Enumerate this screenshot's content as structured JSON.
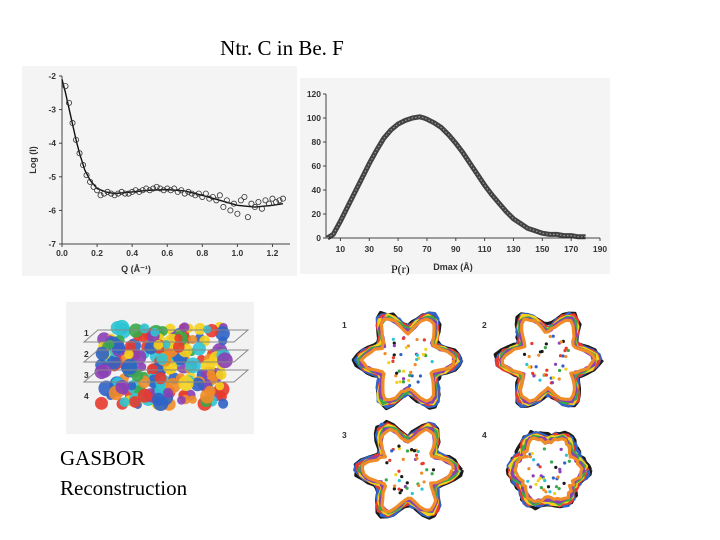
{
  "slide": {
    "title": "Ntr. C in Be. F",
    "caption_line1": "GASBOR",
    "caption_line2": "Reconstruction",
    "pr_label": "P(r)"
  },
  "chart_data": [
    {
      "type": "scatter",
      "xlabel": "Q (Å⁻¹)",
      "ylabel": "Log (I)",
      "xlim": [
        0.0,
        1.3
      ],
      "ylim": [
        -7,
        -2
      ],
      "xticks": [
        "0.0",
        "0.2",
        "0.4",
        "0.6",
        "0.8",
        "1.0",
        "1.2"
      ],
      "yticks": [
        "-2",
        "-3",
        "-4",
        "-5",
        "-6",
        "-7"
      ],
      "series": [
        {
          "kind": "points",
          "x": [
            0.02,
            0.04,
            0.06,
            0.08,
            0.1,
            0.12,
            0.14,
            0.16,
            0.18,
            0.2,
            0.22,
            0.24,
            0.26,
            0.28,
            0.3,
            0.32,
            0.34,
            0.36,
            0.38,
            0.4,
            0.42,
            0.44,
            0.46,
            0.48,
            0.5,
            0.52,
            0.54,
            0.56,
            0.58,
            0.6,
            0.62,
            0.64,
            0.66,
            0.68,
            0.7,
            0.72,
            0.74,
            0.76,
            0.78,
            0.8,
            0.82,
            0.84,
            0.86,
            0.88,
            0.9,
            0.92,
            0.94,
            0.96,
            0.98,
            1.0,
            1.02,
            1.04,
            1.06,
            1.08,
            1.1,
            1.12,
            1.14,
            1.16,
            1.18,
            1.2,
            1.22,
            1.24,
            1.26
          ],
          "y": [
            -2.3,
            -2.8,
            -3.4,
            -3.9,
            -4.3,
            -4.65,
            -4.95,
            -5.15,
            -5.3,
            -5.4,
            -5.55,
            -5.5,
            -5.45,
            -5.5,
            -5.55,
            -5.5,
            -5.45,
            -5.5,
            -5.5,
            -5.45,
            -5.4,
            -5.45,
            -5.4,
            -5.35,
            -5.4,
            -5.35,
            -5.3,
            -5.35,
            -5.4,
            -5.35,
            -5.4,
            -5.35,
            -5.45,
            -5.4,
            -5.5,
            -5.45,
            -5.5,
            -5.55,
            -5.5,
            -5.6,
            -5.5,
            -5.65,
            -5.6,
            -5.7,
            -5.55,
            -5.9,
            -5.7,
            -6.0,
            -5.8,
            -6.1,
            -5.7,
            -5.6,
            -6.2,
            -5.8,
            -5.9,
            -5.75,
            -5.95,
            -5.7,
            -5.8,
            -5.65,
            -5.75,
            -5.7,
            -5.65
          ]
        },
        {
          "kind": "fit",
          "x": [
            0.0,
            0.02,
            0.05,
            0.08,
            0.1,
            0.13,
            0.16,
            0.2,
            0.25,
            0.3,
            0.4,
            0.5,
            0.6,
            0.7,
            0.8,
            0.9,
            1.0,
            1.1,
            1.2,
            1.26
          ],
          "y": [
            -2.1,
            -2.5,
            -3.2,
            -3.9,
            -4.3,
            -4.8,
            -5.1,
            -5.35,
            -5.45,
            -5.5,
            -5.45,
            -5.4,
            -5.38,
            -5.42,
            -5.55,
            -5.7,
            -5.85,
            -5.9,
            -5.85,
            -5.8
          ]
        }
      ]
    },
    {
      "type": "line",
      "xlabel": "Dmax (Å)",
      "ylabel": "",
      "xlim": [
        0,
        190
      ],
      "ylim": [
        0,
        120
      ],
      "xticks": [
        "10",
        "30",
        "50",
        "70",
        "90",
        "110",
        "130",
        "150",
        "170",
        "190"
      ],
      "yticks": [
        "0",
        "20",
        "40",
        "60",
        "80",
        "100",
        "120"
      ],
      "series": [
        {
          "x": [
            1,
            5,
            10,
            15,
            20,
            25,
            30,
            35,
            40,
            45,
            50,
            55,
            60,
            65,
            68,
            70,
            75,
            80,
            85,
            90,
            95,
            100,
            105,
            110,
            115,
            120,
            125,
            130,
            135,
            140,
            145,
            150,
            155,
            160,
            165,
            170,
            175,
            180
          ],
          "y": [
            0,
            3,
            14,
            26,
            38,
            50,
            62,
            73,
            83,
            90,
            95,
            98,
            100,
            101,
            100,
            99,
            96,
            92,
            86,
            79,
            71,
            62,
            53,
            44,
            36,
            29,
            22,
            16,
            12,
            8,
            6,
            4,
            3,
            3,
            2,
            2,
            1,
            1
          ]
        }
      ]
    }
  ],
  "panels": {
    "gasbor_layers": [
      "1",
      "2",
      "3",
      "4"
    ],
    "cross_sections": [
      "1",
      "2",
      "3",
      "4"
    ]
  },
  "colors": [
    "#1a1a1a",
    "#2f63c8",
    "#e83a2e",
    "#f5d21c",
    "#3aa84a",
    "#8b3fb5",
    "#f08c28",
    "#2ec4d4"
  ]
}
